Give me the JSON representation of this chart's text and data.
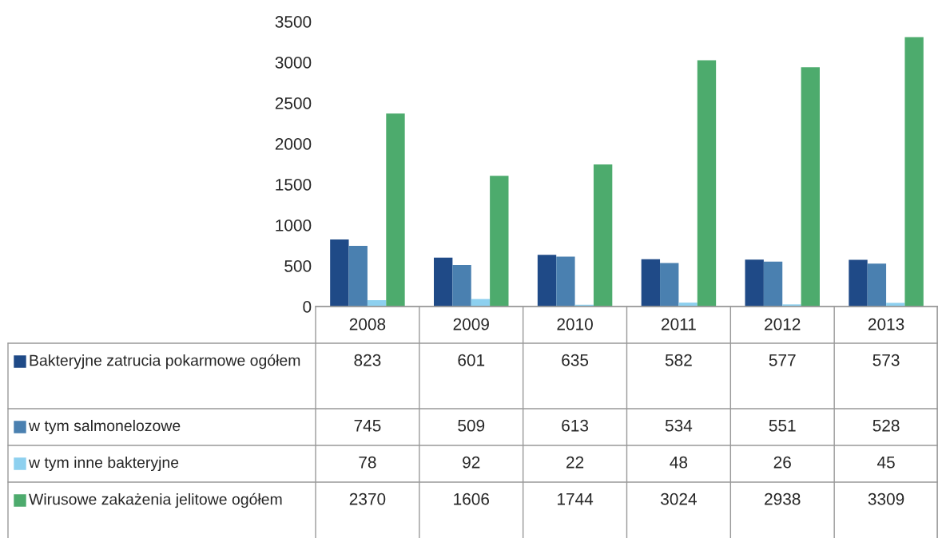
{
  "chart_data": {
    "type": "bar",
    "categories": [
      "2008",
      "2009",
      "2010",
      "2011",
      "2012",
      "2013"
    ],
    "series": [
      {
        "name": "Bakteryjne zatrucia pokarmowe ogółem",
        "color": "#1f4a87",
        "values": [
          823,
          601,
          635,
          582,
          577,
          573
        ]
      },
      {
        "name": "w tym salmonelozowe",
        "color": "#4a80b0",
        "values": [
          745,
          509,
          613,
          534,
          551,
          528
        ]
      },
      {
        "name": "w tym inne bakteryjne",
        "color": "#8dd0ef",
        "values": [
          78,
          92,
          22,
          48,
          26,
          45
        ]
      },
      {
        "name": "Wirusowe zakażenia jelitowe ogółem",
        "color": "#4dab6d",
        "values": [
          2370,
          1606,
          1744,
          3024,
          2938,
          3309
        ]
      }
    ],
    "ylim": [
      0,
      3500
    ],
    "yticks": [
      0,
      500,
      1000,
      1500,
      2000,
      2500,
      3000,
      3500
    ],
    "data_labels": true,
    "legend": "bottom"
  }
}
